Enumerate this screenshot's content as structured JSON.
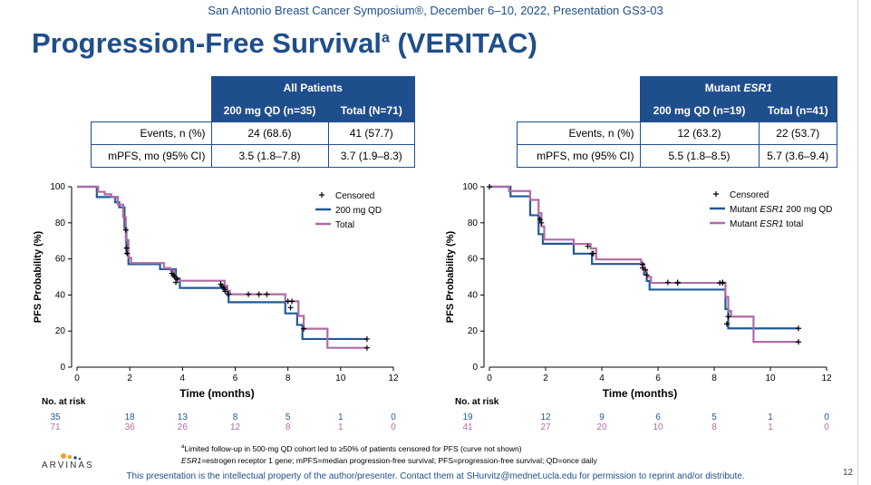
{
  "header": {
    "banner": "San Antonio Breast Cancer Symposium®, December 6–10, 2022, Presentation GS3-03",
    "title": "Progression-Free Survival",
    "title_sup": "a",
    "title_suffix": " (VERITAC)"
  },
  "tables": [
    {
      "group_header": "All Patients",
      "col1": "200 mg QD (n=35)",
      "col2": "Total (N=71)",
      "rows": [
        {
          "label": "Events, n (%)",
          "v1": "24 (68.6)",
          "v2": "41 (57.7)"
        },
        {
          "label": "mPFS, mo (95% CI)",
          "v1": "3.5 (1.8–7.8)",
          "v2": "3.7 (1.9–8.3)"
        }
      ]
    },
    {
      "group_header": "Mutant ",
      "group_header_italic": "ESR1",
      "col1": "200 mg QD (n=19)",
      "col2": "Total (n=41)",
      "rows": [
        {
          "label": "Events, n (%)",
          "v1": "12 (63.2)",
          "v2": "22 (53.7)"
        },
        {
          "label": "mPFS, mo (95% CI)",
          "v1": "5.5 (1.8–8.5)",
          "v2": "5.7 (3.6–9.4)"
        }
      ]
    }
  ],
  "chart_data": [
    {
      "type": "line",
      "step": true,
      "xlabel": "Time (months)",
      "ylabel": "PFS Probability (%)",
      "xlim": [
        0,
        12
      ],
      "ylim": [
        0,
        100
      ],
      "xticks": [
        0,
        2,
        4,
        6,
        8,
        10,
        12
      ],
      "yticks": [
        0,
        20,
        40,
        60,
        80,
        100
      ],
      "legend_position": "top-right",
      "censored_label": "Censored",
      "series": [
        {
          "name": "200 mg QD",
          "name_italic": "",
          "name_suffix": "",
          "color": "#1f5a96",
          "points": [
            [
              0,
              100
            ],
            [
              0.45,
              100
            ],
            [
              0.75,
              94.3
            ],
            [
              1.1,
              94.3
            ],
            [
              1.45,
              91.4
            ],
            [
              1.6,
              88.6
            ],
            [
              1.8,
              77.1
            ],
            [
              1.87,
              62.9
            ],
            [
              1.95,
              57.1
            ],
            [
              3.0,
              57.1
            ],
            [
              3.15,
              54.3
            ],
            [
              3.6,
              54.3
            ],
            [
              3.75,
              48.6
            ],
            [
              3.9,
              43.9
            ],
            [
              5.6,
              43.9
            ],
            [
              5.7,
              40.0
            ],
            [
              5.75,
              36.0
            ],
            [
              7.8,
              36.0
            ],
            [
              7.9,
              29.8
            ],
            [
              8.2,
              29.8
            ],
            [
              8.35,
              23.4
            ],
            [
              8.55,
              15.6
            ],
            [
              11.0,
              15.6
            ]
          ],
          "censor": [
            [
              3.65,
              51
            ],
            [
              3.75,
              47
            ],
            [
              5.62,
              42
            ],
            [
              8.1,
              33
            ],
            [
              11.0,
              15.6
            ]
          ]
        },
        {
          "name": "Total",
          "name_italic": "",
          "name_suffix": "",
          "color": "#b06aa6",
          "points": [
            [
              0,
              100
            ],
            [
              0.6,
              100
            ],
            [
              0.8,
              97.2
            ],
            [
              1.05,
              95.8
            ],
            [
              1.3,
              94.4
            ],
            [
              1.55,
              90.1
            ],
            [
              1.75,
              83.1
            ],
            [
              1.85,
              70.4
            ],
            [
              1.95,
              60.6
            ],
            [
              2.05,
              57.7
            ],
            [
              3.0,
              57.7
            ],
            [
              3.3,
              54.9
            ],
            [
              3.55,
              53.5
            ],
            [
              3.7,
              49.3
            ],
            [
              3.9,
              47.9
            ],
            [
              5.5,
              47.9
            ],
            [
              5.6,
              45.1
            ],
            [
              5.7,
              42.3
            ],
            [
              5.8,
              40.4
            ],
            [
              7.8,
              40.4
            ],
            [
              7.9,
              36.5
            ],
            [
              8.3,
              36.5
            ],
            [
              8.4,
              28.4
            ],
            [
              8.6,
              21.3
            ],
            [
              9.4,
              21.3
            ],
            [
              9.5,
              10.7
            ],
            [
              11.0,
              10.7
            ]
          ],
          "censor": [
            [
              1.85,
              76
            ],
            [
              1.88,
              66
            ],
            [
              1.9,
              63
            ],
            [
              3.6,
              52
            ],
            [
              3.7,
              50
            ],
            [
              3.8,
              49
            ],
            [
              5.45,
              46
            ],
            [
              5.5,
              45
            ],
            [
              5.55,
              44
            ],
            [
              5.6,
              43
            ],
            [
              5.75,
              40.4
            ],
            [
              6.5,
              40.4
            ],
            [
              6.9,
              40.4
            ],
            [
              7.2,
              40.4
            ],
            [
              8.0,
              36.5
            ],
            [
              8.15,
              36.5
            ],
            [
              8.6,
              21.3
            ],
            [
              11.0,
              10.7
            ]
          ]
        }
      ],
      "risk": {
        "label": "No. at risk",
        "x": [
          0,
          2,
          4,
          6,
          8,
          10,
          12
        ],
        "rows": [
          {
            "color": "#1f5a96",
            "values": [
              "35",
              "18",
              "13",
              "8",
              "5",
              "1",
              "0"
            ]
          },
          {
            "color": "#b06aa6",
            "values": [
              "71",
              "36",
              "26",
              "12",
              "8",
              "1",
              "0"
            ]
          }
        ]
      }
    },
    {
      "type": "line",
      "step": true,
      "xlabel": "Time (months)",
      "ylabel": "PFS Probability (%)",
      "xlim": [
        0,
        12
      ],
      "ylim": [
        0,
        100
      ],
      "xticks": [
        0,
        2,
        4,
        6,
        8,
        10,
        12
      ],
      "yticks": [
        0,
        20,
        40,
        60,
        80,
        100
      ],
      "legend_position": "top-right",
      "censored_label": "Censored",
      "series": [
        {
          "name": "Mutant ",
          "name_italic": "ESR1",
          "name_suffix": " 200 mg QD",
          "color": "#1f5a96",
          "points": [
            [
              0,
              100
            ],
            [
              0.7,
              100
            ],
            [
              0.75,
              94.7
            ],
            [
              1.35,
              94.7
            ],
            [
              1.45,
              84.2
            ],
            [
              1.65,
              84.2
            ],
            [
              1.75,
              73.7
            ],
            [
              1.9,
              68.4
            ],
            [
              2.9,
              68.4
            ],
            [
              3.0,
              62.9
            ],
            [
              3.5,
              62.9
            ],
            [
              3.65,
              57.2
            ],
            [
              5.3,
              57.2
            ],
            [
              5.5,
              51.5
            ],
            [
              5.6,
              47.8
            ],
            [
              5.7,
              43.0
            ],
            [
              8.3,
              43.0
            ],
            [
              8.4,
              32.2
            ],
            [
              8.5,
              21.5
            ],
            [
              11.0,
              21.5
            ]
          ],
          "censor": [
            [
              0,
              100
            ],
            [
              1.85,
              80
            ],
            [
              3.65,
              63
            ],
            [
              5.45,
              57
            ],
            [
              5.55,
              54
            ],
            [
              6.35,
              47
            ],
            [
              6.7,
              47
            ],
            [
              8.3,
              47
            ],
            [
              8.45,
              24
            ],
            [
              11.0,
              21.5
            ]
          ]
        },
        {
          "name": "Mutant ",
          "name_italic": "ESR1",
          "name_suffix": " total",
          "color": "#b06aa6",
          "points": [
            [
              0,
              100
            ],
            [
              0.6,
              100
            ],
            [
              0.7,
              97.6
            ],
            [
              1.35,
              97.6
            ],
            [
              1.45,
              92.7
            ],
            [
              1.65,
              92.7
            ],
            [
              1.75,
              85.4
            ],
            [
              1.85,
              78.0
            ],
            [
              1.95,
              70.7
            ],
            [
              2.9,
              70.7
            ],
            [
              3.0,
              68.3
            ],
            [
              3.5,
              68.3
            ],
            [
              3.6,
              65.8
            ],
            [
              3.8,
              59.7
            ],
            [
              5.3,
              59.7
            ],
            [
              5.4,
              56.5
            ],
            [
              5.5,
              53.2
            ],
            [
              5.6,
              50.0
            ],
            [
              5.75,
              46.7
            ],
            [
              8.3,
              46.7
            ],
            [
              8.4,
              38.9
            ],
            [
              8.5,
              31.1
            ],
            [
              8.6,
              28.0
            ],
            [
              9.3,
              28.0
            ],
            [
              9.4,
              14.0
            ],
            [
              11.0,
              14.0
            ]
          ],
          "censor": [
            [
              1.8,
              82
            ],
            [
              3.5,
              67
            ],
            [
              3.7,
              63
            ],
            [
              5.45,
              55
            ],
            [
              5.6,
              51
            ],
            [
              6.7,
              46.7
            ],
            [
              8.2,
              46.7
            ],
            [
              8.3,
              46.7
            ],
            [
              8.5,
              28
            ],
            [
              11.0,
              14.0
            ]
          ]
        }
      ],
      "risk": {
        "label": "No. at risk",
        "x": [
          0,
          2,
          4,
          6,
          8,
          10,
          12
        ],
        "rows": [
          {
            "color": "#1f5a96",
            "values": [
              "19",
              "12",
              "9",
              "6",
              "5",
              "1",
              "0"
            ]
          },
          {
            "color": "#b06aa6",
            "values": [
              "41",
              "27",
              "20",
              "10",
              "8",
              "1",
              "0"
            ]
          }
        ]
      }
    }
  ],
  "footnotes": {
    "a_sup": "a",
    "a_text": "Limited follow-up in 500-mg QD cohort led to ≥50% of patients censored for PFS (curve not shown)",
    "b_italic": "ESR1",
    "b_text": "=estrogen receptor 1 gene; mPFS=median progression-free survival; PFS=progression-free survival; QD=once daily"
  },
  "logo": {
    "word": "ARVINAS",
    "colors": [
      "#f0a030",
      "#1f4e8c"
    ]
  },
  "bottom_note": "This presentation is the intellectual property of the author/presenter. Contact them at SHurvitz@mednet.ucla.edu for permission to reprint and/or distribute.",
  "page_number": "12"
}
